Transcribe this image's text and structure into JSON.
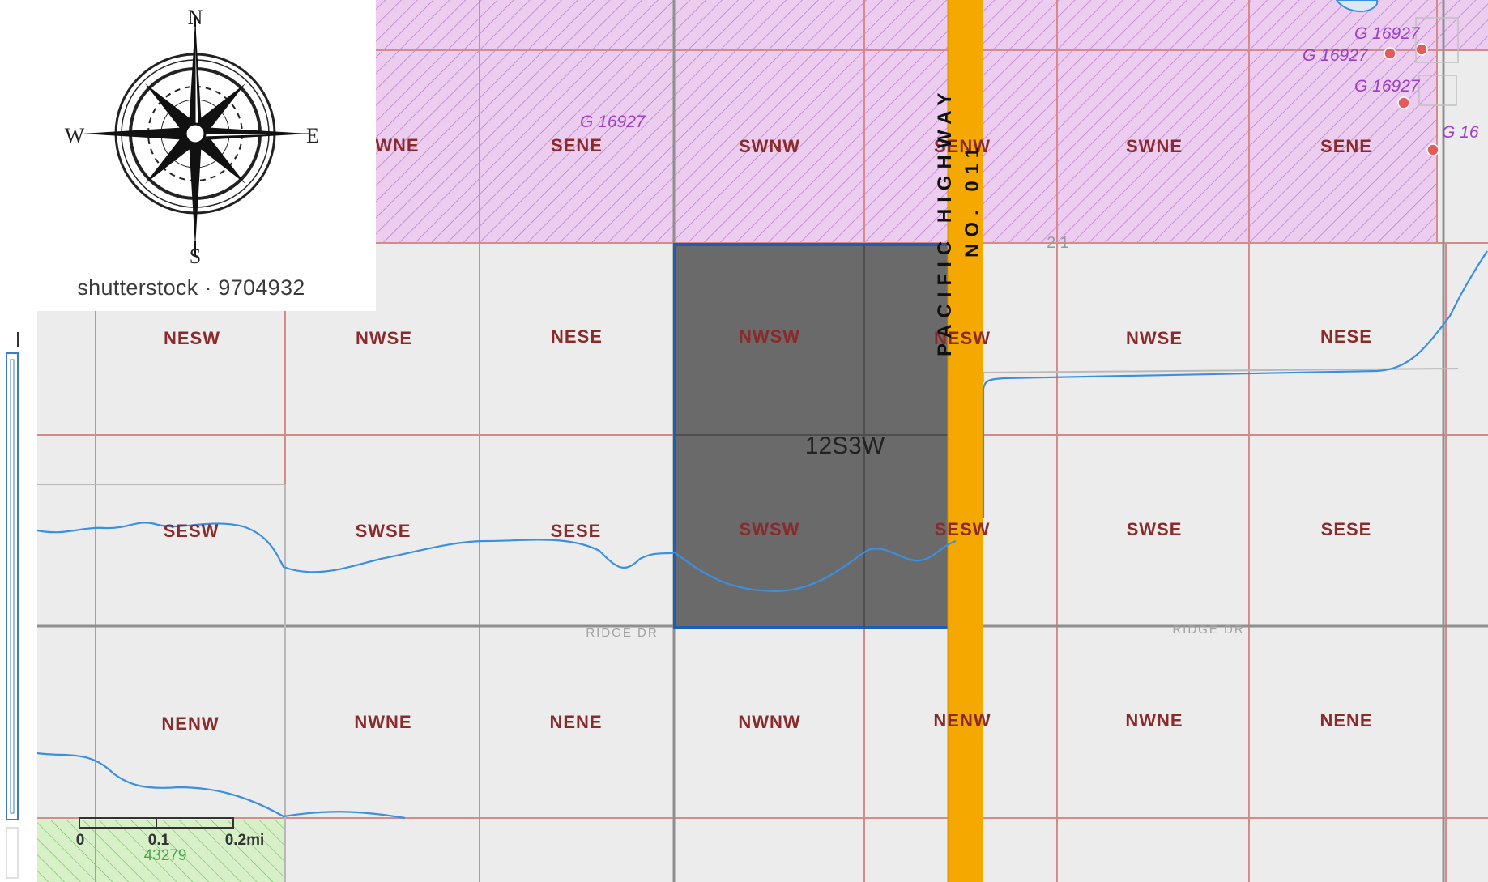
{
  "map": {
    "selected_parcel_label": "12S3W",
    "highway_label": "PACIFIC HIGHWAY",
    "highway_number": "NO. 011",
    "road_label_left": "RIDGE DR",
    "road_label_right": "RIDGE DR",
    "section_corner_label": "2 1",
    "claim_label": "G 16927",
    "claim_label_cut": "G 16",
    "green_claim_label": "43279",
    "colors": {
      "claim_fill": "#eccdf0",
      "claim_hatch": "#b56fc8",
      "selected_fill": "#6a6a6a",
      "selected_border": "#1a5fb4",
      "highway": "#f5a800",
      "stream": "#3b8fe0",
      "grid_line": "#d88a8a",
      "background": "#ececec",
      "green_fill": "#d7f0c8"
    },
    "tracts": {
      "row1": [
        "NWNE",
        "SENE",
        "SWNW",
        "SENW",
        "SWNE",
        "SENE"
      ],
      "row2": [
        "NESW",
        "NWSE",
        "NESE",
        "NWSW",
        "NESW",
        "NWSE",
        "NESE"
      ],
      "row3": [
        "SESW",
        "SWSE",
        "SESE",
        "SWSW",
        "SESW",
        "SWSE",
        "SESE"
      ],
      "row4": [
        "NENW",
        "NWNE",
        "NENE",
        "NWNW",
        "NENW",
        "NWNE",
        "NENE"
      ]
    }
  },
  "compass": {
    "north": "N",
    "south": "S",
    "east": "E",
    "west": "W",
    "credit": "shutterstock · 9704932"
  },
  "scale_bar": {
    "labels": [
      "0",
      "0.1",
      "0.2mi"
    ]
  }
}
